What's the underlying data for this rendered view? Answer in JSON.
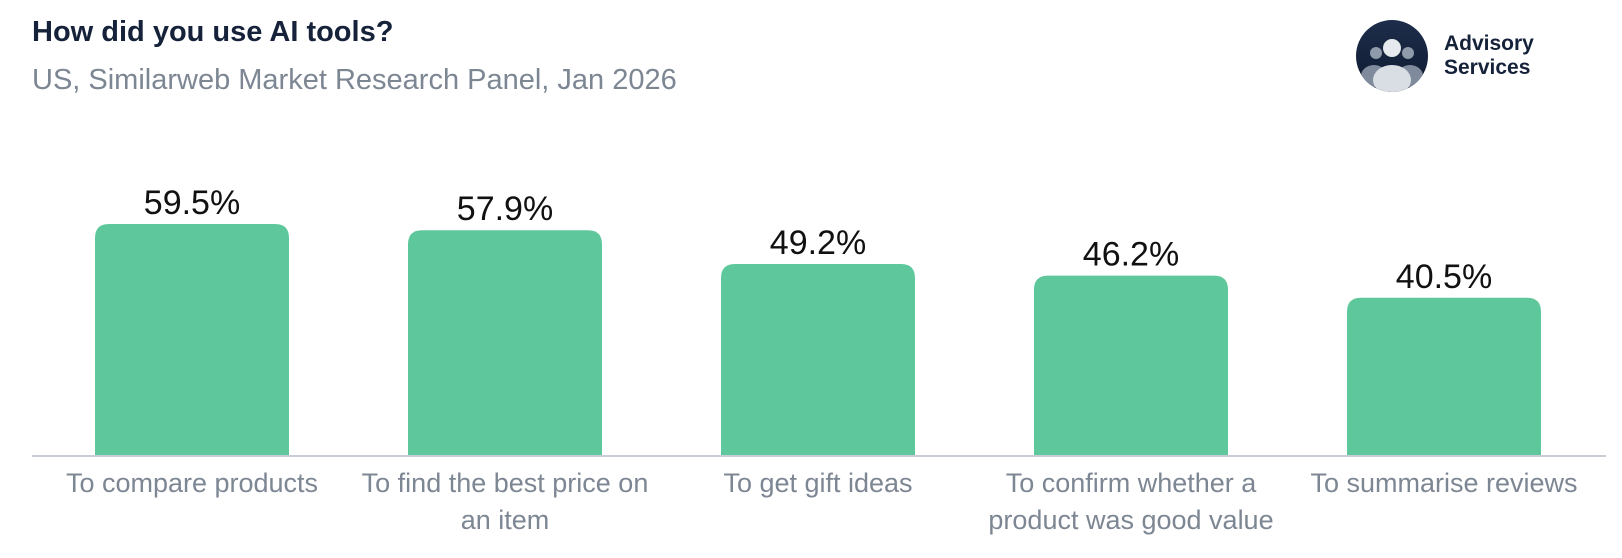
{
  "header": {
    "title": "How did you use AI tools?",
    "subtitle": "US, Similarweb Market Research Panel, Jan 2026"
  },
  "brand": {
    "line1": "Advisory",
    "line2": "Services",
    "icon": "people-group-icon"
  },
  "colors": {
    "bar": "#5ec89c",
    "axis": "#c9ced6",
    "label": "#7d8693",
    "title": "#15223a"
  },
  "chart_data": {
    "type": "bar",
    "title": "How did you use AI tools?",
    "subtitle": "US, Similarweb Market Research Panel, Jan 2026",
    "categories": [
      "To compare products",
      "To find the best price on an item",
      "To get gift ideas",
      "To confirm whether a product was good value",
      "To summarise reviews"
    ],
    "values": [
      59.5,
      57.9,
      49.2,
      46.2,
      40.5
    ],
    "value_labels": [
      "59.5%",
      "57.9%",
      "49.2%",
      "46.2%",
      "40.5%"
    ],
    "unit": "%",
    "xlabel": "",
    "ylabel": "",
    "ylim": [
      0,
      59.5
    ],
    "grid": false,
    "legend": "none"
  }
}
